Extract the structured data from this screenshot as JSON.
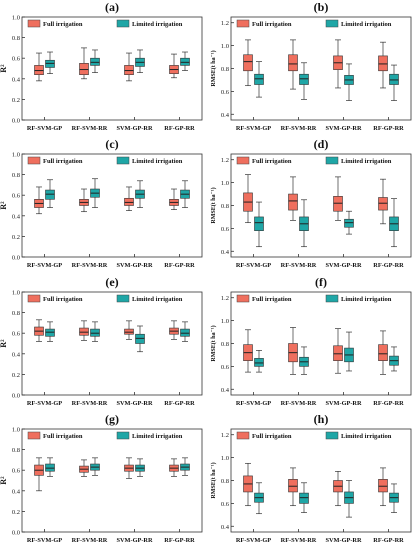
{
  "figure": {
    "colors": {
      "full": "#ef6f5e",
      "limited": "#1fa6a6",
      "median": "#222222",
      "axis": "#333333",
      "grid": "#dddddd"
    }
  },
  "chart_data": [
    {
      "type": "box",
      "panel_label": "(a)",
      "ylabel": "R²",
      "ylim": [
        0,
        1.0
      ],
      "yticks": [
        "0.0",
        "0.2",
        "0.4",
        "0.6",
        "0.8",
        "1.0"
      ],
      "categories": [
        "RF-SVM-GP",
        "RF-SVM-RR",
        "SVM-GP-RR",
        "RF-GP-RR"
      ],
      "legend": [
        "Full irrigation",
        "Limited irrigation"
      ],
      "series": [
        {
          "name": "Full irrigation",
          "boxes": [
            {
              "min": 0.38,
              "q1": 0.44,
              "median": 0.48,
              "q3": 0.53,
              "max": 0.65
            },
            {
              "min": 0.4,
              "q1": 0.44,
              "median": 0.49,
              "q3": 0.55,
              "max": 0.7
            },
            {
              "min": 0.38,
              "q1": 0.44,
              "median": 0.48,
              "q3": 0.53,
              "max": 0.65
            },
            {
              "min": 0.41,
              "q1": 0.45,
              "median": 0.49,
              "q3": 0.53,
              "max": 0.64
            }
          ]
        },
        {
          "name": "Limited irrigation",
          "boxes": [
            {
              "min": 0.45,
              "q1": 0.51,
              "median": 0.55,
              "q3": 0.58,
              "max": 0.66
            },
            {
              "min": 0.46,
              "q1": 0.53,
              "median": 0.56,
              "q3": 0.6,
              "max": 0.68
            },
            {
              "min": 0.46,
              "q1": 0.52,
              "median": 0.56,
              "q3": 0.6,
              "max": 0.68
            },
            {
              "min": 0.48,
              "q1": 0.53,
              "median": 0.56,
              "q3": 0.6,
              "max": 0.66
            }
          ]
        }
      ]
    },
    {
      "type": "box",
      "panel_label": "(b)",
      "ylabel": "RMSE(t ha⁻¹)",
      "ylim": [
        0.35,
        1.25
      ],
      "yticks": [
        "0.4",
        "0.6",
        "0.8",
        "1.0",
        "1.2"
      ],
      "categories": [
        "RF-SVM-GP",
        "RF-SVM-RR",
        "SVM-GP-RR",
        "RF-GP-RR"
      ],
      "legend": [
        "Full irrigation",
        "Limited irrigation"
      ],
      "series": [
        {
          "name": "Full irrigation",
          "boxes": [
            {
              "min": 0.65,
              "q1": 0.78,
              "median": 0.86,
              "q3": 0.92,
              "max": 1.05
            },
            {
              "min": 0.62,
              "q1": 0.78,
              "median": 0.84,
              "q3": 0.92,
              "max": 1.05
            },
            {
              "min": 0.63,
              "q1": 0.79,
              "median": 0.85,
              "q3": 0.91,
              "max": 1.05
            },
            {
              "min": 0.63,
              "q1": 0.78,
              "median": 0.84,
              "q3": 0.91,
              "max": 1.03
            }
          ]
        },
        {
          "name": "Limited irrigation",
          "boxes": [
            {
              "min": 0.55,
              "q1": 0.66,
              "median": 0.71,
              "q3": 0.75,
              "max": 0.86
            },
            {
              "min": 0.53,
              "q1": 0.66,
              "median": 0.71,
              "q3": 0.75,
              "max": 0.85
            },
            {
              "min": 0.52,
              "q1": 0.66,
              "median": 0.7,
              "q3": 0.74,
              "max": 0.84
            },
            {
              "min": 0.52,
              "q1": 0.66,
              "median": 0.7,
              "q3": 0.75,
              "max": 0.83
            }
          ]
        }
      ]
    },
    {
      "type": "box",
      "panel_label": "(c)",
      "ylabel": "R²",
      "ylim": [
        0,
        1.0
      ],
      "yticks": [
        "0.0",
        "0.2",
        "0.4",
        "0.6",
        "0.8",
        "1.0"
      ],
      "categories": [
        "RF-SVM-GP",
        "RF-SVM-RR",
        "SVM-GP-RR",
        "RF-GP-RR"
      ],
      "legend": [
        "Full irrigation",
        "Limited irrigation"
      ],
      "series": [
        {
          "name": "Full irrigation",
          "boxes": [
            {
              "min": 0.42,
              "q1": 0.48,
              "median": 0.52,
              "q3": 0.56,
              "max": 0.68
            },
            {
              "min": 0.44,
              "q1": 0.5,
              "median": 0.53,
              "q3": 0.56,
              "max": 0.66
            },
            {
              "min": 0.45,
              "q1": 0.5,
              "median": 0.53,
              "q3": 0.57,
              "max": 0.68
            },
            {
              "min": 0.46,
              "q1": 0.5,
              "median": 0.53,
              "q3": 0.56,
              "max": 0.66
            }
          ]
        },
        {
          "name": "Limited irrigation",
          "boxes": [
            {
              "min": 0.48,
              "q1": 0.56,
              "median": 0.61,
              "q3": 0.65,
              "max": 0.75
            },
            {
              "min": 0.48,
              "q1": 0.58,
              "median": 0.62,
              "q3": 0.66,
              "max": 0.76
            },
            {
              "min": 0.48,
              "q1": 0.57,
              "median": 0.61,
              "q3": 0.65,
              "max": 0.74
            },
            {
              "min": 0.48,
              "q1": 0.57,
              "median": 0.61,
              "q3": 0.65,
              "max": 0.74
            }
          ]
        }
      ]
    },
    {
      "type": "box",
      "panel_label": "(d)",
      "ylabel": "RMSE(t ha⁻¹)",
      "ylim": [
        0.35,
        1.25
      ],
      "yticks": [
        "0.4",
        "0.6",
        "0.8",
        "1.0",
        "1.2"
      ],
      "categories": [
        "RF-SVM-GP",
        "RF-SVM-RR",
        "SVM-GP-RR",
        "RF-GP-RR"
      ],
      "legend": [
        "Full irrigation",
        "Limited irrigation"
      ],
      "series": [
        {
          "name": "Full irrigation",
          "boxes": [
            {
              "min": 0.65,
              "q1": 0.75,
              "median": 0.83,
              "q3": 0.91,
              "max": 1.07
            },
            {
              "min": 0.67,
              "q1": 0.76,
              "median": 0.84,
              "q3": 0.9,
              "max": 1.05
            },
            {
              "min": 0.67,
              "q1": 0.75,
              "median": 0.82,
              "q3": 0.88,
              "max": 1.05
            },
            {
              "min": 0.64,
              "q1": 0.76,
              "median": 0.82,
              "q3": 0.87,
              "max": 1.03
            }
          ]
        },
        {
          "name": "Limited irrigation",
          "boxes": [
            {
              "min": 0.44,
              "q1": 0.58,
              "median": 0.65,
              "q3": 0.7,
              "max": 0.83
            },
            {
              "min": 0.44,
              "q1": 0.58,
              "median": 0.64,
              "q3": 0.7,
              "max": 0.85
            },
            {
              "min": 0.55,
              "q1": 0.61,
              "median": 0.65,
              "q3": 0.68,
              "max": 0.75
            },
            {
              "min": 0.44,
              "q1": 0.58,
              "median": 0.64,
              "q3": 0.7,
              "max": 0.86
            }
          ]
        }
      ]
    },
    {
      "type": "box",
      "panel_label": "(e)",
      "ylabel": "R²",
      "ylim": [
        0,
        1.0
      ],
      "yticks": [
        "0.0",
        "0.2",
        "0.4",
        "0.6",
        "0.8",
        "1.0"
      ],
      "categories": [
        "RF-SVM-GP",
        "RF-SVM-RR",
        "SVM-GP-RR",
        "RF-GP-RR"
      ],
      "legend": [
        "Full irrigation",
        "Limited irrigation"
      ],
      "series": [
        {
          "name": "Full irrigation",
          "boxes": [
            {
              "min": 0.52,
              "q1": 0.58,
              "median": 0.62,
              "q3": 0.66,
              "max": 0.73
            },
            {
              "min": 0.53,
              "q1": 0.58,
              "median": 0.61,
              "q3": 0.65,
              "max": 0.72
            },
            {
              "min": 0.54,
              "q1": 0.59,
              "median": 0.61,
              "q3": 0.64,
              "max": 0.72
            },
            {
              "min": 0.54,
              "q1": 0.59,
              "median": 0.62,
              "q3": 0.65,
              "max": 0.72
            }
          ]
        },
        {
          "name": "Limited irrigation",
          "boxes": [
            {
              "min": 0.52,
              "q1": 0.57,
              "median": 0.61,
              "q3": 0.64,
              "max": 0.71
            },
            {
              "min": 0.52,
              "q1": 0.57,
              "median": 0.6,
              "q3": 0.64,
              "max": 0.71
            },
            {
              "min": 0.42,
              "q1": 0.5,
              "median": 0.55,
              "q3": 0.59,
              "max": 0.67
            },
            {
              "min": 0.52,
              "q1": 0.57,
              "median": 0.6,
              "q3": 0.64,
              "max": 0.71
            }
          ]
        }
      ]
    },
    {
      "type": "box",
      "panel_label": "(f)",
      "ylabel": "RMSE(t ha⁻¹)",
      "ylim": [
        0.35,
        1.25
      ],
      "yticks": [
        "0.4",
        "0.6",
        "0.8",
        "1.0",
        "1.2"
      ],
      "categories": [
        "RF-SVM-GP",
        "RF-SVM-RR",
        "SVM-GP-RR",
        "RF-GP-RR"
      ],
      "legend": [
        "Full irrigation",
        "Limited irrigation"
      ],
      "series": [
        {
          "name": "Full irrigation",
          "boxes": [
            {
              "min": 0.55,
              "q1": 0.65,
              "median": 0.72,
              "q3": 0.79,
              "max": 0.92
            },
            {
              "min": 0.53,
              "q1": 0.64,
              "median": 0.72,
              "q3": 0.8,
              "max": 0.94
            },
            {
              "min": 0.54,
              "q1": 0.65,
              "median": 0.71,
              "q3": 0.78,
              "max": 0.93
            },
            {
              "min": 0.53,
              "q1": 0.65,
              "median": 0.71,
              "q3": 0.79,
              "max": 0.91
            }
          ]
        },
        {
          "name": "Limited irrigation",
          "boxes": [
            {
              "min": 0.55,
              "q1": 0.6,
              "median": 0.63,
              "q3": 0.67,
              "max": 0.74
            },
            {
              "min": 0.53,
              "q1": 0.6,
              "median": 0.64,
              "q3": 0.68,
              "max": 0.77
            },
            {
              "min": 0.56,
              "q1": 0.64,
              "median": 0.7,
              "q3": 0.76,
              "max": 0.9
            },
            {
              "min": 0.56,
              "q1": 0.61,
              "median": 0.65,
              "q3": 0.69,
              "max": 0.77
            }
          ]
        }
      ]
    },
    {
      "type": "box",
      "panel_label": "(g)",
      "ylabel": "R²",
      "ylim": [
        0,
        1.0
      ],
      "yticks": [
        "0.0",
        "0.2",
        "0.4",
        "0.6",
        "0.8",
        "1.0"
      ],
      "categories": [
        "RF-SVM-GP",
        "RF-SVM-RR",
        "SVM-GP-RR",
        "RF-GP-RR"
      ],
      "legend": [
        "Full irrigation",
        "Limited irrigation"
      ],
      "series": [
        {
          "name": "Full irrigation",
          "boxes": [
            {
              "min": 0.4,
              "q1": 0.55,
              "median": 0.6,
              "q3": 0.65,
              "max": 0.72
            },
            {
              "min": 0.54,
              "q1": 0.58,
              "median": 0.61,
              "q3": 0.64,
              "max": 0.7
            },
            {
              "min": 0.52,
              "q1": 0.59,
              "median": 0.62,
              "q3": 0.65,
              "max": 0.72
            },
            {
              "min": 0.54,
              "q1": 0.59,
              "median": 0.62,
              "q3": 0.65,
              "max": 0.71
            }
          ]
        },
        {
          "name": "Limited irrigation",
          "boxes": [
            {
              "min": 0.54,
              "q1": 0.59,
              "median": 0.62,
              "q3": 0.66,
              "max": 0.72
            },
            {
              "min": 0.55,
              "q1": 0.6,
              "median": 0.63,
              "q3": 0.66,
              "max": 0.72
            },
            {
              "min": 0.54,
              "q1": 0.59,
              "median": 0.62,
              "q3": 0.65,
              "max": 0.71
            },
            {
              "min": 0.55,
              "q1": 0.6,
              "median": 0.63,
              "q3": 0.66,
              "max": 0.72
            }
          ]
        }
      ]
    },
    {
      "type": "box",
      "panel_label": "(h)",
      "ylabel": "RMSE(t ha⁻¹)",
      "ylim": [
        0.35,
        1.25
      ],
      "yticks": [
        "0.4",
        "0.6",
        "0.8",
        "1.0",
        "1.2"
      ],
      "categories": [
        "RF-SVM-GP",
        "RF-SVM-RR",
        "SVM-GP-RR",
        "RF-GP-RR"
      ],
      "legend": [
        "Full irrigation",
        "Limited irrigation"
      ],
      "series": [
        {
          "name": "Full irrigation",
          "boxes": [
            {
              "min": 0.58,
              "q1": 0.7,
              "median": 0.77,
              "q3": 0.84,
              "max": 0.95
            },
            {
              "min": 0.58,
              "q1": 0.7,
              "median": 0.75,
              "q3": 0.81,
              "max": 0.91
            },
            {
              "min": 0.58,
              "q1": 0.7,
              "median": 0.75,
              "q3": 0.8,
              "max": 0.88
            },
            {
              "min": 0.58,
              "q1": 0.7,
              "median": 0.75,
              "q3": 0.81,
              "max": 0.91
            }
          ]
        },
        {
          "name": "Limited irrigation",
          "boxes": [
            {
              "min": 0.51,
              "q1": 0.61,
              "median": 0.65,
              "q3": 0.69,
              "max": 0.78
            },
            {
              "min": 0.52,
              "q1": 0.6,
              "median": 0.65,
              "q3": 0.69,
              "max": 0.78
            },
            {
              "min": 0.48,
              "q1": 0.6,
              "median": 0.65,
              "q3": 0.7,
              "max": 0.8
            },
            {
              "min": 0.52,
              "q1": 0.61,
              "median": 0.65,
              "q3": 0.69,
              "max": 0.77
            }
          ]
        }
      ]
    }
  ]
}
